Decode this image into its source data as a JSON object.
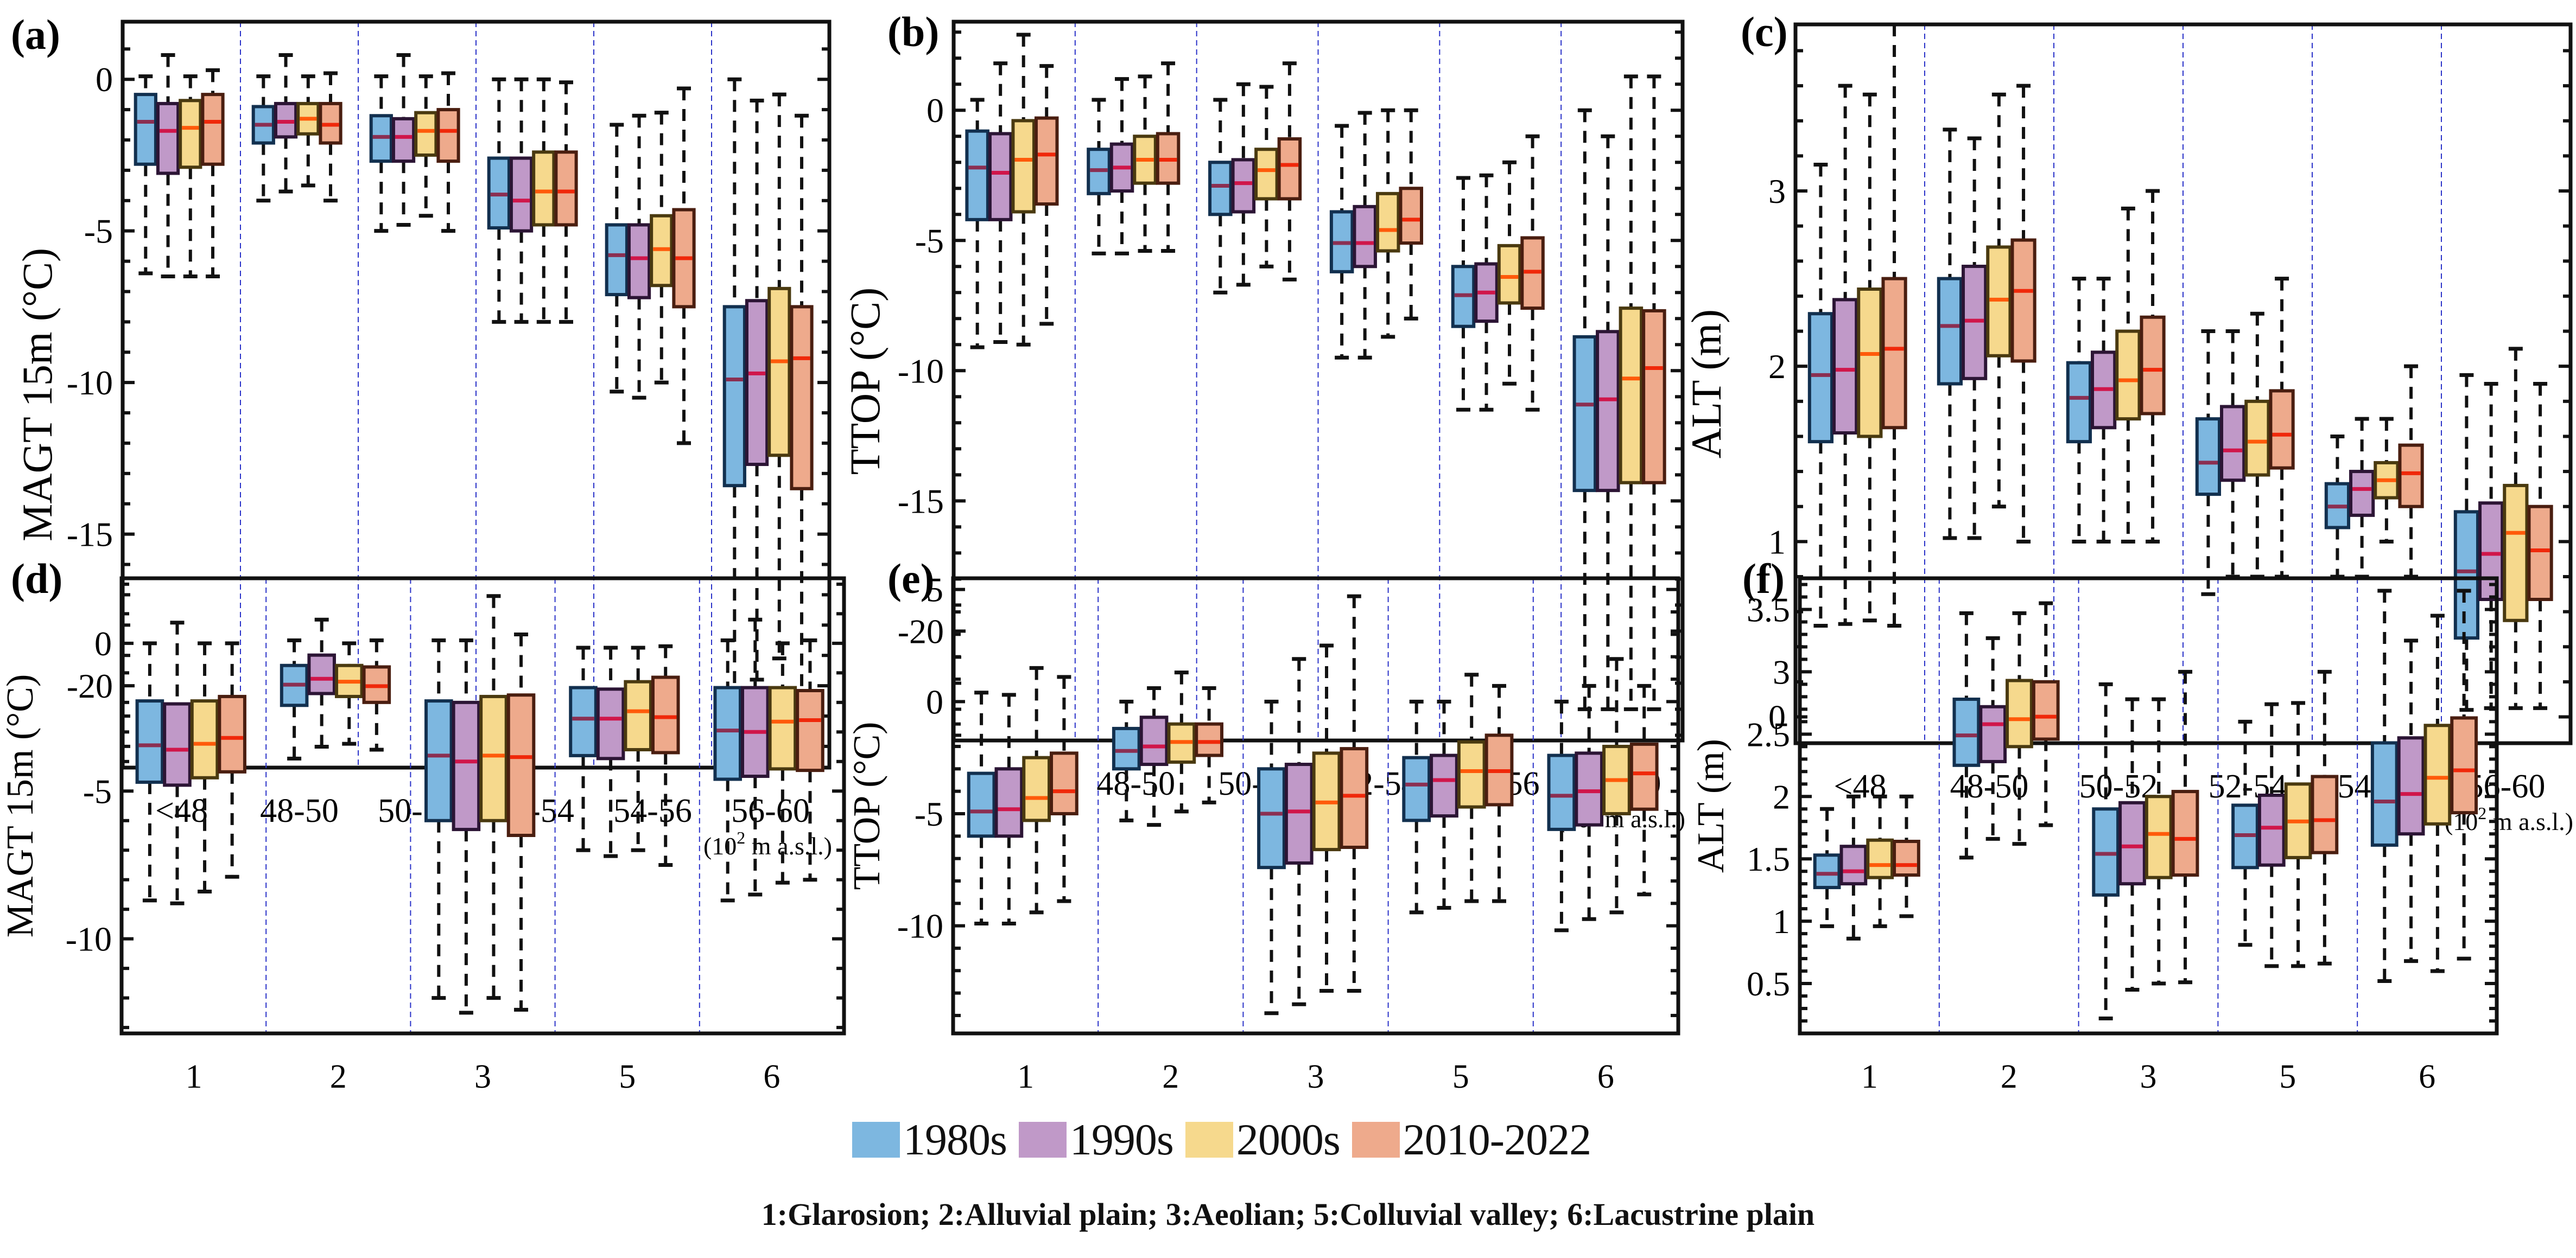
{
  "legend": [
    {
      "label": "1980s",
      "color": "#7db7e0"
    },
    {
      "label": "1990s",
      "color": "#c099c8"
    },
    {
      "label": "2000s",
      "color": "#f6d98d"
    },
    {
      "label": "2010-2022",
      "color": "#eeaa8c"
    }
  ],
  "median_colors": [
    "#8b2f52",
    "#d0164a",
    "#ff5a0a",
    "#f0280a"
  ],
  "caption": "1:Glarosion; 2:Alluvial plain; 3:Aeolian; 5:Colluvial valley; 6:Lacustrine plain",
  "chart_data": [
    {
      "panel": "(a)",
      "type": "box",
      "ylabel": "MAGT 15m (°C)",
      "xunit": "(10² m a.s.l.)",
      "categories": [
        "<48",
        "48-50",
        "50-52",
        "52-54",
        "54-56",
        "56-60"
      ],
      "yticks": [
        0,
        -5,
        -10,
        -15,
        -20
      ],
      "ylim": [
        -22.7,
        1.9
      ],
      "series_order": [
        "1980s",
        "1990s",
        "2000s",
        "2010-2022"
      ],
      "boxes": [
        [
          [
            0.1,
            -0.5,
            -1.4,
            -2.8,
            -6.4
          ],
          [
            0.8,
            -0.8,
            -1.7,
            -3.1,
            -6.5
          ],
          [
            0.1,
            -0.7,
            -1.6,
            -2.9,
            -6.5
          ],
          [
            0.3,
            -0.5,
            -1.4,
            -2.8,
            -6.5
          ]
        ],
        [
          [
            0.1,
            -0.9,
            -1.5,
            -2.1,
            -4.0
          ],
          [
            0.8,
            -0.8,
            -1.4,
            -1.9,
            -3.7
          ],
          [
            0.1,
            -0.8,
            -1.3,
            -1.8,
            -3.5
          ],
          [
            0.2,
            -0.8,
            -1.5,
            -2.1,
            -4.0
          ]
        ],
        [
          [
            0.1,
            -1.2,
            -1.9,
            -2.7,
            -5.0
          ],
          [
            0.8,
            -1.3,
            -1.9,
            -2.7,
            -4.8
          ],
          [
            0.1,
            -1.1,
            -1.7,
            -2.5,
            -4.5
          ],
          [
            0.2,
            -1.0,
            -1.7,
            -2.7,
            -5.0
          ]
        ],
        [
          [
            0.0,
            -2.6,
            -3.8,
            -4.9,
            -8.0
          ],
          [
            0.0,
            -2.6,
            -4.0,
            -5.0,
            -8.0
          ],
          [
            0.0,
            -2.4,
            -3.7,
            -4.8,
            -8.0
          ],
          [
            -0.1,
            -2.4,
            -3.7,
            -4.8,
            -8.0
          ]
        ],
        [
          [
            -1.5,
            -4.8,
            -5.8,
            -7.1,
            -10.3
          ],
          [
            -1.2,
            -4.8,
            -5.9,
            -7.2,
            -10.5
          ],
          [
            -1.1,
            -4.5,
            -5.6,
            -6.8,
            -10.0
          ],
          [
            -0.3,
            -4.3,
            -5.9,
            -7.5,
            -12.0
          ]
        ],
        [
          [
            0.0,
            -7.5,
            -9.9,
            -13.4,
            -21.6
          ],
          [
            -0.7,
            -7.3,
            -9.7,
            -12.7,
            -19.8
          ],
          [
            -0.5,
            -6.9,
            -9.3,
            -12.4,
            -19.1
          ],
          [
            -1.2,
            -7.5,
            -9.2,
            -13.5,
            -21.1
          ]
        ]
      ]
    },
    {
      "panel": "(b)",
      "type": "box",
      "ylabel": "TTOP (°C)",
      "xunit": "(10² m a.s.l.)",
      "categories": [
        "<48",
        "48-50",
        "50-52",
        "52-54",
        "54-56",
        "56-60"
      ],
      "yticks": [
        0,
        -5,
        -10,
        -15,
        -20
      ],
      "ylim": [
        -24.2,
        3.4
      ],
      "series_order": [
        "1980s",
        "1990s",
        "2000s",
        "2010-2022"
      ],
      "boxes": [
        [
          [
            0.4,
            -0.8,
            -2.2,
            -4.2,
            -9.1
          ],
          [
            1.8,
            -0.9,
            -2.4,
            -4.2,
            -8.9
          ],
          [
            2.9,
            -0.4,
            -1.9,
            -3.9,
            -9.0
          ],
          [
            1.7,
            -0.3,
            -1.7,
            -3.6,
            -8.2
          ]
        ],
        [
          [
            0.4,
            -1.5,
            -2.3,
            -3.2,
            -5.5
          ],
          [
            1.2,
            -1.3,
            -2.2,
            -3.1,
            -5.5
          ],
          [
            1.3,
            -1.0,
            -1.9,
            -2.8,
            -5.4
          ],
          [
            1.8,
            -0.9,
            -1.9,
            -2.8,
            -5.4
          ]
        ],
        [
          [
            0.4,
            -2.0,
            -2.9,
            -4.0,
            -7.0
          ],
          [
            1.0,
            -1.9,
            -2.8,
            -3.9,
            -6.7
          ],
          [
            0.9,
            -1.5,
            -2.3,
            -3.4,
            -6.0
          ],
          [
            1.8,
            -1.1,
            -2.1,
            -3.4,
            -6.5
          ]
        ],
        [
          [
            -0.6,
            -3.9,
            -5.1,
            -6.2,
            -9.5
          ],
          [
            -0.1,
            -3.7,
            -5.1,
            -6.0,
            -9.5
          ],
          [
            0.0,
            -3.2,
            -4.6,
            -5.4,
            -8.7
          ],
          [
            0.0,
            -3.0,
            -4.2,
            -5.1,
            -8.0
          ]
        ],
        [
          [
            -2.6,
            -6.0,
            -7.1,
            -8.3,
            -11.5
          ],
          [
            -2.5,
            -5.9,
            -7.0,
            -8.1,
            -11.5
          ],
          [
            -2.0,
            -5.2,
            -6.4,
            -7.4,
            -10.5
          ],
          [
            -1.0,
            -4.9,
            -6.2,
            -7.6,
            -11.5
          ]
        ],
        [
          [
            0.0,
            -8.7,
            -11.3,
            -14.6,
            -23.0
          ],
          [
            -1.0,
            -8.5,
            -11.1,
            -14.6,
            -23.0
          ],
          [
            1.3,
            -7.6,
            -10.3,
            -14.3,
            -23.0
          ],
          [
            1.3,
            -7.7,
            -9.9,
            -14.3,
            -23.0
          ]
        ]
      ]
    },
    {
      "panel": "(c)",
      "type": "box",
      "ylabel": "ALT (m)",
      "xunit": "(10² m a.s.l.)",
      "categories": [
        "<48",
        "48-50",
        "50-52",
        "52-54",
        "54-56",
        "56-60"
      ],
      "yticks": [
        0,
        1,
        2,
        3
      ],
      "ylim": [
        -0.15,
        3.95
      ],
      "series_order": [
        "1980s",
        "1990s",
        "2000s",
        "2010-2022"
      ],
      "boxes": [
        [
          [
            3.15,
            2.3,
            1.95,
            1.57,
            0.52
          ],
          [
            3.6,
            2.38,
            1.98,
            1.62,
            0.53
          ],
          [
            3.55,
            2.44,
            2.07,
            1.6,
            0.55
          ],
          [
            3.95,
            2.5,
            2.1,
            1.65,
            0.52
          ]
        ],
        [
          [
            3.35,
            2.5,
            2.23,
            1.9,
            1.02
          ],
          [
            3.3,
            2.57,
            2.26,
            1.93,
            1.02
          ],
          [
            3.55,
            2.68,
            2.38,
            2.06,
            1.2
          ],
          [
            3.6,
            2.72,
            2.43,
            2.03,
            1.0
          ]
        ],
        [
          [
            2.5,
            2.02,
            1.82,
            1.57,
            1.0
          ],
          [
            2.5,
            2.08,
            1.87,
            1.65,
            1.0
          ],
          [
            2.9,
            2.2,
            1.92,
            1.7,
            1.0
          ],
          [
            3.0,
            2.28,
            1.98,
            1.73,
            1.0
          ]
        ],
        [
          [
            2.2,
            1.7,
            1.45,
            1.27,
            0.7
          ],
          [
            2.2,
            1.77,
            1.52,
            1.35,
            0.8
          ],
          [
            2.3,
            1.8,
            1.57,
            1.38,
            0.8
          ],
          [
            2.5,
            1.86,
            1.61,
            1.42,
            0.8
          ]
        ],
        [
          [
            1.6,
            1.33,
            1.2,
            1.08,
            0.8
          ],
          [
            1.7,
            1.4,
            1.3,
            1.15,
            0.8
          ],
          [
            1.7,
            1.45,
            1.35,
            1.25,
            1.0
          ],
          [
            2.0,
            1.55,
            1.39,
            1.2,
            0.8
          ]
        ],
        [
          [
            1.95,
            1.17,
            0.83,
            0.45,
            0.04
          ],
          [
            1.9,
            1.22,
            0.93,
            0.67,
            0.05
          ],
          [
            2.1,
            1.32,
            1.05,
            0.55,
            0.05
          ],
          [
            1.9,
            1.2,
            0.95,
            0.67,
            0.05
          ]
        ]
      ]
    },
    {
      "panel": "(d)",
      "type": "box",
      "ylabel": "MAGT 15m (°C)",
      "categories": [
        "1",
        "2",
        "3",
        "5",
        "6"
      ],
      "yticks": [
        0,
        -5,
        -10
      ],
      "ylim": [
        -13.2,
        2.2
      ],
      "series_order": [
        "1980s",
        "1990s",
        "2000s",
        "2010-2022"
      ],
      "boxes": [
        [
          [
            0.0,
            -1.95,
            -3.45,
            -4.7,
            -8.7
          ],
          [
            0.7,
            -2.05,
            -3.6,
            -4.8,
            -8.8
          ],
          [
            0.0,
            -1.95,
            -3.4,
            -4.55,
            -8.4
          ],
          [
            0.0,
            -1.8,
            -3.2,
            -4.35,
            -7.9
          ]
        ],
        [
          [
            0.1,
            -0.75,
            -1.4,
            -2.1,
            -3.9
          ],
          [
            0.8,
            -0.4,
            -1.2,
            -1.7,
            -3.5
          ],
          [
            0.0,
            -0.75,
            -1.3,
            -1.8,
            -3.4
          ],
          [
            0.1,
            -0.8,
            -1.45,
            -2.0,
            -3.6
          ]
        ],
        [
          [
            0.1,
            -1.95,
            -3.8,
            -6.0,
            -12.0
          ],
          [
            0.1,
            -2.0,
            -4.0,
            -6.3,
            -12.5
          ],
          [
            1.6,
            -1.8,
            -3.8,
            -6.0,
            -12.0
          ],
          [
            0.3,
            -1.75,
            -3.85,
            -6.5,
            -12.4
          ]
        ],
        [
          [
            -0.15,
            -1.5,
            -2.55,
            -3.8,
            -7.0
          ],
          [
            -0.15,
            -1.55,
            -2.55,
            -3.9,
            -7.2
          ],
          [
            -0.15,
            -1.3,
            -2.3,
            -3.6,
            -7.0
          ],
          [
            -0.1,
            -1.15,
            -2.5,
            -3.7,
            -7.5
          ]
        ],
        [
          [
            0.1,
            -1.5,
            -2.95,
            -4.6,
            -8.7
          ],
          [
            0.8,
            -1.5,
            -3.0,
            -4.5,
            -8.5
          ],
          [
            0.0,
            -1.5,
            -2.65,
            -4.25,
            -8.1
          ],
          [
            0.1,
            -1.6,
            -2.6,
            -4.3,
            -8.0
          ]
        ]
      ]
    },
    {
      "panel": "(e)",
      "type": "box",
      "ylabel": "TTOP (°C)",
      "categories": [
        "1",
        "2",
        "3",
        "5",
        "6"
      ],
      "yticks": [
        5,
        0,
        -5,
        -10
      ],
      "ylim": [
        -14.8,
        5.5
      ],
      "series_order": [
        "1980s",
        "1990s",
        "2000s",
        "2010-2022"
      ],
      "boxes": [
        [
          [
            0.4,
            -3.2,
            -4.9,
            -6.0,
            -9.9
          ],
          [
            0.3,
            -3.0,
            -4.8,
            -6.0,
            -9.9
          ],
          [
            1.5,
            -2.5,
            -4.3,
            -5.3,
            -9.4
          ],
          [
            1.1,
            -2.3,
            -4.0,
            -5.0,
            -8.9
          ]
        ],
        [
          [
            0.0,
            -1.2,
            -2.2,
            -3.0,
            -5.3
          ],
          [
            0.6,
            -0.7,
            -2.0,
            -2.8,
            -5.5
          ],
          [
            1.3,
            -1.0,
            -1.8,
            -2.7,
            -4.9
          ],
          [
            0.6,
            -1.0,
            -1.8,
            -2.4,
            -4.5
          ]
        ],
        [
          [
            0.0,
            -3.0,
            -5.0,
            -7.4,
            -13.9
          ],
          [
            1.9,
            -2.8,
            -4.9,
            -7.2,
            -13.5
          ],
          [
            2.5,
            -2.3,
            -4.5,
            -6.6,
            -12.9
          ],
          [
            4.7,
            -2.1,
            -4.2,
            -6.5,
            -12.9
          ]
        ],
        [
          [
            0.0,
            -2.5,
            -3.7,
            -5.3,
            -9.4
          ],
          [
            0.0,
            -2.4,
            -3.5,
            -5.1,
            -9.2
          ],
          [
            1.2,
            -1.8,
            -3.1,
            -4.7,
            -8.9
          ],
          [
            0.7,
            -1.5,
            -3.1,
            -4.6,
            -8.9
          ]
        ],
        [
          [
            0.0,
            -2.4,
            -4.2,
            -5.7,
            -10.2
          ],
          [
            0.7,
            -2.3,
            -4.0,
            -5.5,
            -9.7
          ],
          [
            1.9,
            -2.0,
            -3.5,
            -5.0,
            -9.4
          ],
          [
            0.7,
            -1.9,
            -3.2,
            -4.8,
            -8.6
          ]
        ]
      ]
    },
    {
      "panel": "(f)",
      "type": "box",
      "ylabel": "ALT (m)",
      "categories": [
        "1",
        "2",
        "3",
        "5",
        "6"
      ],
      "yticks": [
        0.5,
        1,
        1.5,
        2,
        2.5,
        3,
        3.5
      ],
      "ylim": [
        0.1,
        3.75
      ],
      "series_order": [
        "1980s",
        "1990s",
        "2000s",
        "2010-2022"
      ],
      "boxes": [
        [
          [
            1.9,
            1.53,
            1.38,
            1.27,
            0.96
          ],
          [
            2.0,
            1.6,
            1.4,
            1.3,
            0.86
          ],
          [
            2.0,
            1.65,
            1.45,
            1.35,
            0.96
          ],
          [
            2.0,
            1.64,
            1.45,
            1.37,
            1.04
          ]
        ],
        [
          [
            3.47,
            2.78,
            2.49,
            2.25,
            1.51
          ],
          [
            3.27,
            2.72,
            2.58,
            2.28,
            1.66
          ],
          [
            3.47,
            2.93,
            2.62,
            2.4,
            1.62
          ],
          [
            3.55,
            2.92,
            2.64,
            2.46,
            1.77
          ]
        ],
        [
          [
            2.9,
            1.9,
            1.54,
            1.21,
            0.22
          ],
          [
            2.78,
            1.95,
            1.6,
            1.3,
            0.45
          ],
          [
            2.78,
            2.0,
            1.7,
            1.35,
            0.5
          ],
          [
            3.0,
            2.04,
            1.66,
            1.37,
            0.51
          ]
        ],
        [
          [
            2.6,
            1.93,
            1.69,
            1.43,
            0.81
          ],
          [
            2.74,
            2.01,
            1.75,
            1.45,
            0.64
          ],
          [
            2.75,
            2.1,
            1.8,
            1.51,
            0.64
          ],
          [
            3.0,
            2.16,
            1.81,
            1.55,
            0.66
          ]
        ],
        [
          [
            3.65,
            2.43,
            1.96,
            1.61,
            0.52
          ],
          [
            3.25,
            2.47,
            2.02,
            1.7,
            0.68
          ],
          [
            3.45,
            2.57,
            2.15,
            1.78,
            0.6
          ],
          [
            3.65,
            2.63,
            2.21,
            1.87,
            0.7
          ]
        ]
      ]
    }
  ]
}
